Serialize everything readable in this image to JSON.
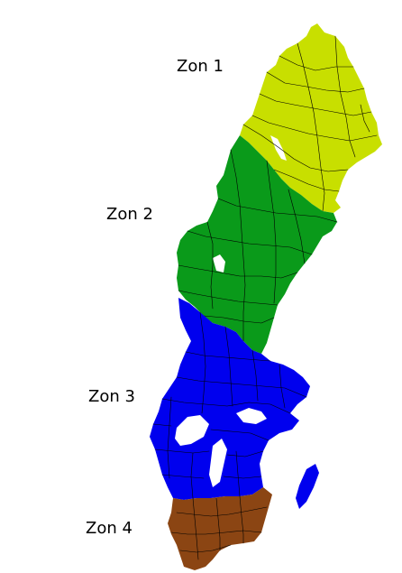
{
  "map": {
    "zones": [
      {
        "id": "zone-1",
        "label": "Zon 1",
        "color": "#c8df00"
      },
      {
        "id": "zone-2",
        "label": "Zon 2",
        "color": "#0a9a1a"
      },
      {
        "id": "zone-3",
        "label": "Zon 3",
        "color": "#0000ee"
      },
      {
        "id": "zone-4",
        "label": "Zon 4",
        "color": "#8b4513"
      }
    ],
    "border_color": "#000000",
    "background_color": "#ffffff"
  }
}
